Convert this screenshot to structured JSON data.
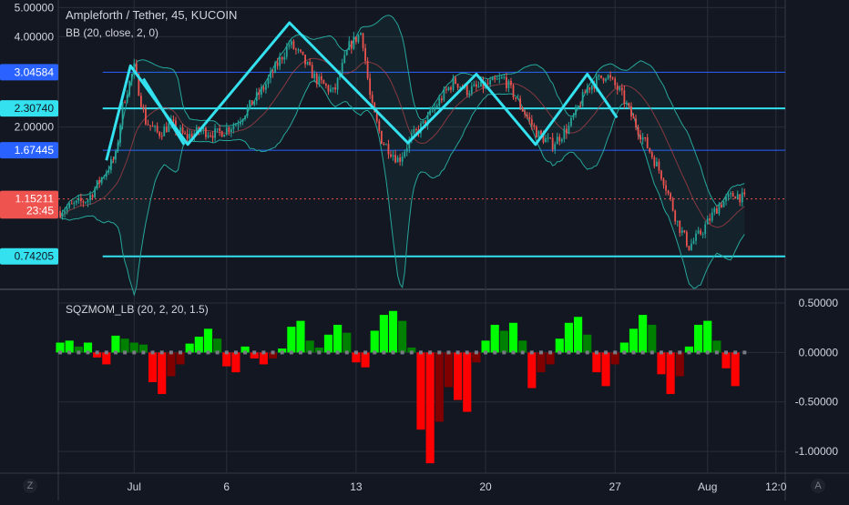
{
  "header": {
    "symbol_line": "Ampleforth / Tether, 45, KUCOIN",
    "bb_line": "BB (20, close, 2, 0)",
    "osc_line": "SQZMOM_LB (20, 2, 20, 1.5)"
  },
  "toolbar": {
    "zoom_label": "Z",
    "auto_label": "A"
  },
  "colors": {
    "background": "#131722",
    "grid": "#2a2e39",
    "cyan": "#33e1ef",
    "blue_line": "#2962ff",
    "bb": "#26a69a",
    "up": "#26a69a",
    "down": "#ef5350",
    "mom_lime": "#00ff00",
    "mom_green": "#008000",
    "mom_red": "#ff0000",
    "mom_maroon": "#800000"
  },
  "chart_data": [
    {
      "type": "candlestick",
      "title": "Ampleforth / Tether, 45, KUCOIN",
      "y_scale": "log",
      "y_ticks": [
        "5.00000",
        "4.00000",
        "2.00000"
      ],
      "y_tick_values": [
        5.0,
        4.0,
        2.0
      ],
      "x_ticks": [
        "Jul",
        "6",
        "13",
        "20",
        "27",
        "Aug",
        "12:0"
      ],
      "x_tick_days": [
        1,
        6,
        13,
        20,
        27,
        32,
        35.7
      ],
      "x_range_days": [
        -3.1,
        36.2
      ],
      "y_range": [
        0.58,
        5.3
      ],
      "price_labels": [
        {
          "text": "3.04584",
          "value": 3.04584,
          "color": "#2962ff"
        },
        {
          "text": "2.30740",
          "value": 2.3074,
          "color": "#33e1ef"
        },
        {
          "text": "1.67445",
          "value": 1.67445,
          "color": "#2962ff"
        },
        {
          "text": "1.15211",
          "value": 1.15211,
          "color": "#ef5350"
        },
        {
          "text": "23:45",
          "value": 1.055,
          "color": "#ef5350"
        },
        {
          "text": "0.74205",
          "value": 0.74205,
          "color": "#33e1ef"
        }
      ],
      "horizontal_levels": [
        {
          "value": 3.04584,
          "color": "#2962ff"
        },
        {
          "value": 2.3074,
          "color": "#33e1ef"
        },
        {
          "value": 1.67445,
          "color": "#2962ff"
        },
        {
          "value": 0.74205,
          "color": "#33e1ef"
        }
      ],
      "last_price": 1.15211,
      "pattern_line": [
        [
          -0.5,
          1.55
        ],
        [
          0.8,
          3.2
        ],
        [
          3.9,
          1.75
        ],
        [
          9.4,
          4.45
        ],
        [
          15.8,
          1.77
        ],
        [
          19.5,
          3.0
        ],
        [
          22.7,
          1.75
        ],
        [
          25.5,
          3.0
        ],
        [
          27.1,
          2.15
        ]
      ],
      "pattern_line_2": [
        [
          1.5,
          2.9
        ],
        [
          3.7,
          1.75
        ]
      ],
      "price_path": [
        [
          -3.0,
          1.05
        ],
        [
          -1.5,
          1.15
        ],
        [
          0.0,
          1.6
        ],
        [
          0.4,
          2.4
        ],
        [
          1.0,
          3.15
        ],
        [
          1.6,
          2.1
        ],
        [
          2.3,
          1.9
        ],
        [
          3.0,
          2.05
        ],
        [
          3.8,
          1.85
        ],
        [
          4.6,
          1.95
        ],
        [
          5.5,
          1.9
        ],
        [
          6.5,
          2.05
        ],
        [
          8.0,
          2.7
        ],
        [
          9.4,
          3.8
        ],
        [
          10.0,
          3.45
        ],
        [
          10.8,
          2.9
        ],
        [
          11.8,
          2.6
        ],
        [
          12.6,
          3.7
        ],
        [
          13.3,
          4.15
        ],
        [
          13.8,
          2.4
        ],
        [
          14.4,
          1.8
        ],
        [
          15.3,
          1.55
        ],
        [
          16.0,
          1.85
        ],
        [
          16.8,
          2.1
        ],
        [
          17.6,
          2.5
        ],
        [
          18.3,
          2.85
        ],
        [
          19.0,
          2.65
        ],
        [
          20.0,
          2.75
        ],
        [
          21.0,
          2.9
        ],
        [
          21.8,
          2.4
        ],
        [
          22.8,
          1.9
        ],
        [
          23.6,
          1.75
        ],
        [
          24.5,
          2.0
        ],
        [
          25.5,
          2.7
        ],
        [
          26.5,
          3.0
        ],
        [
          27.3,
          2.6
        ],
        [
          28.0,
          2.1
        ],
        [
          28.8,
          1.7
        ],
        [
          29.6,
          1.35
        ],
        [
          30.4,
          0.95
        ],
        [
          31.0,
          0.8
        ],
        [
          31.7,
          0.9
        ],
        [
          32.6,
          1.1
        ],
        [
          33.5,
          1.2
        ],
        [
          34.0,
          1.15
        ]
      ],
      "bb_period": 20
    },
    {
      "type": "bar",
      "title": "SQZMOM_LB (20, 2, 20, 1.5)",
      "y_ticks": [
        "0.50000",
        "0.00000",
        "-0.50000",
        "-1.00000"
      ],
      "y_tick_values": [
        0.5,
        0.0,
        -0.5,
        -1.0
      ],
      "y_range": [
        -1.22,
        0.62
      ],
      "x": [
        -3.0,
        -2.5,
        -2.0,
        -1.5,
        -1.0,
        -0.5,
        0.0,
        0.5,
        1.0,
        1.5,
        2.0,
        2.5,
        3.0,
        3.5,
        4.0,
        4.5,
        5.0,
        5.5,
        6.0,
        6.5,
        7.0,
        7.5,
        8.0,
        8.5,
        9.0,
        9.5,
        10.0,
        10.5,
        11.0,
        11.5,
        12.0,
        12.5,
        13.0,
        13.5,
        14.0,
        14.5,
        15.0,
        15.5,
        16.0,
        16.5,
        17.0,
        17.5,
        18.0,
        18.5,
        19.0,
        19.5,
        20.0,
        20.5,
        21.0,
        21.5,
        22.0,
        22.5,
        23.0,
        23.5,
        24.0,
        24.5,
        25.0,
        25.5,
        26.0,
        26.5,
        27.0,
        27.5,
        28.0,
        28.5,
        29.0,
        29.5,
        30.0,
        30.5,
        31.0,
        31.5,
        32.0,
        32.5,
        33.0,
        33.5
      ],
      "values": [
        0.1,
        0.12,
        0.06,
        0.1,
        -0.05,
        -0.12,
        0.17,
        0.14,
        0.1,
        0.08,
        -0.3,
        -0.42,
        -0.24,
        -0.12,
        0.09,
        0.16,
        0.24,
        0.14,
        -0.14,
        -0.2,
        0.06,
        -0.06,
        -0.12,
        -0.06,
        0.04,
        0.26,
        0.32,
        0.12,
        0.05,
        0.18,
        0.28,
        0.2,
        -0.1,
        -0.15,
        0.22,
        0.38,
        0.42,
        0.32,
        0.05,
        -0.78,
        -1.12,
        -0.7,
        -0.35,
        -0.48,
        -0.6,
        -0.1,
        0.12,
        0.28,
        0.22,
        0.3,
        0.12,
        -0.36,
        -0.2,
        -0.12,
        0.14,
        0.3,
        0.36,
        0.18,
        -0.2,
        -0.34,
        -0.12,
        0.1,
        0.24,
        0.38,
        0.28,
        -0.22,
        -0.42,
        -0.24,
        0.06,
        0.28,
        0.32,
        0.12,
        -0.16,
        -0.34
      ]
    }
  ]
}
